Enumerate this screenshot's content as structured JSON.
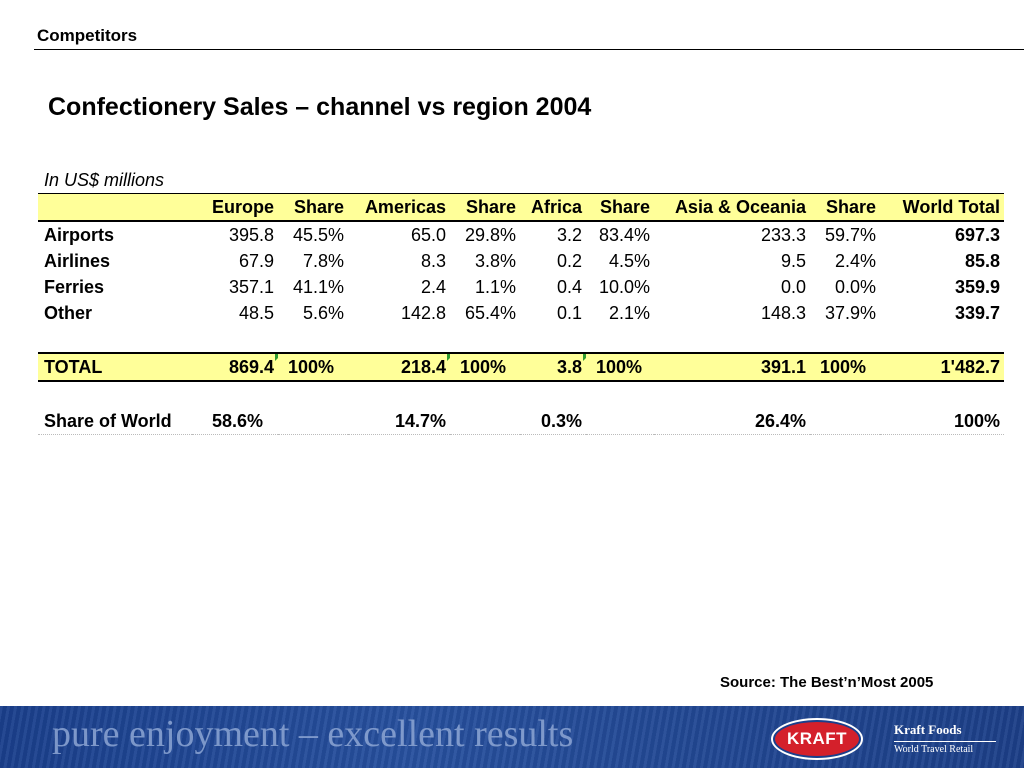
{
  "header": {
    "section": "Competitors",
    "title": "Confectionery Sales – channel vs region 2004",
    "unit_note": "In US$ millions"
  },
  "table": {
    "columns": [
      "",
      "Europe",
      "Share",
      "Americas",
      "Share",
      "Africa",
      "Share",
      "Asia & Oceania",
      "Share",
      "World Total"
    ],
    "rows": [
      {
        "label": "Airports",
        "values": [
          "395.8",
          "45.5%",
          "65.0",
          "29.8%",
          "3.2",
          "83.4%",
          "233.3",
          "59.7%",
          "697.3"
        ]
      },
      {
        "label": "Airlines",
        "values": [
          "67.9",
          "7.8%",
          "8.3",
          "3.8%",
          "0.2",
          "4.5%",
          "9.5",
          "2.4%",
          "85.8"
        ]
      },
      {
        "label": "Ferries",
        "values": [
          "357.1",
          "41.1%",
          "2.4",
          "1.1%",
          "0.4",
          "10.0%",
          "0.0",
          "0.0%",
          "359.9"
        ]
      },
      {
        "label": "Other",
        "values": [
          "48.5",
          "5.6%",
          "142.8",
          "65.4%",
          "0.1",
          "2.1%",
          "148.3",
          "37.9%",
          "339.7"
        ]
      }
    ],
    "total": {
      "label": "TOTAL",
      "values": [
        "869.4",
        "100%",
        "218.4",
        "100%",
        "3.8",
        "100%",
        "391.1",
        "100%",
        "1'482.7"
      ]
    },
    "share_of_world": {
      "label": "Share of World",
      "values": [
        "58.6%",
        "",
        "14.7%",
        "",
        "0.3%",
        "",
        "26.4%",
        "",
        "100%"
      ]
    }
  },
  "source": "Source: The Best’n’Most 2005",
  "footer": {
    "tagline": "pure enjoyment – excellent results",
    "logo_text": "KRAFT",
    "brand_name": "Kraft Foods",
    "brand_sub": "World Travel Retail"
  },
  "colors": {
    "highlight": "#ffff99",
    "footer_blue": "#1a3f8c",
    "logo_red": "#d4202b"
  }
}
